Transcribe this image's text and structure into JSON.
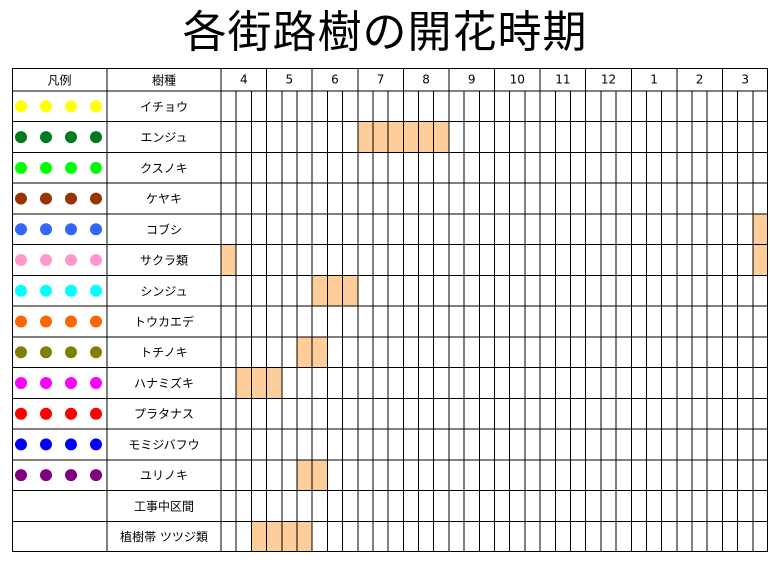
{
  "title": "各街路樹の開花時期",
  "header": {
    "legend_label": "凡例",
    "species_label": "樹種",
    "months": [
      "4",
      "5",
      "6",
      "7",
      "8",
      "9",
      "10",
      "11",
      "12",
      "1",
      "2",
      "3"
    ]
  },
  "colors": {
    "bloom_fill": "#fdcd9a",
    "grid_line": "#000000"
  },
  "chart_data": {
    "type": "table",
    "subdivisions_per_month": 3,
    "rows": [
      {
        "name": "イチョウ",
        "legend_color": "#ffff00",
        "bloom": []
      },
      {
        "name": "エンジュ",
        "legend_color": "#007a1f",
        "bloom": [
          [
            7,
            1
          ],
          [
            7,
            2
          ],
          [
            7,
            3
          ],
          [
            8,
            1
          ],
          [
            8,
            2
          ],
          [
            8,
            3
          ]
        ]
      },
      {
        "name": "クスノキ",
        "legend_color": "#00ff00",
        "bloom": []
      },
      {
        "name": "ケヤキ",
        "legend_color": "#993300",
        "bloom": []
      },
      {
        "name": "コブシ",
        "legend_color": "#3366ff",
        "bloom": [
          [
            3,
            3
          ]
        ]
      },
      {
        "name": "サクラ類",
        "legend_color": "#ff99cc",
        "bloom": [
          [
            3,
            3
          ],
          [
            4,
            1
          ]
        ]
      },
      {
        "name": "シンジュ",
        "legend_color": "#00ffff",
        "bloom": [
          [
            6,
            1
          ],
          [
            6,
            2
          ],
          [
            6,
            3
          ]
        ]
      },
      {
        "name": "トウカエデ",
        "legend_color": "#ff6600",
        "bloom": []
      },
      {
        "name": "トチノキ",
        "legend_color": "#808000",
        "bloom": [
          [
            5,
            3
          ],
          [
            6,
            1
          ]
        ]
      },
      {
        "name": "ハナミズキ",
        "legend_color": "#ff00ff",
        "bloom": [
          [
            4,
            2
          ],
          [
            4,
            3
          ],
          [
            5,
            1
          ]
        ]
      },
      {
        "name": "プラタナス",
        "legend_color": "#ff0000",
        "bloom": []
      },
      {
        "name": "モミジバフウ",
        "legend_color": "#0000ff",
        "bloom": []
      },
      {
        "name": "ユリノキ",
        "legend_color": "#800080",
        "bloom": [
          [
            5,
            3
          ],
          [
            6,
            1
          ]
        ]
      },
      {
        "name": "工事中区間",
        "legend_color": null,
        "bloom": []
      },
      {
        "name": "植樹帯 ツツジ類",
        "legend_color": null,
        "bloom": [
          [
            4,
            3
          ],
          [
            5,
            1
          ],
          [
            5,
            2
          ],
          [
            5,
            3
          ]
        ]
      }
    ]
  }
}
